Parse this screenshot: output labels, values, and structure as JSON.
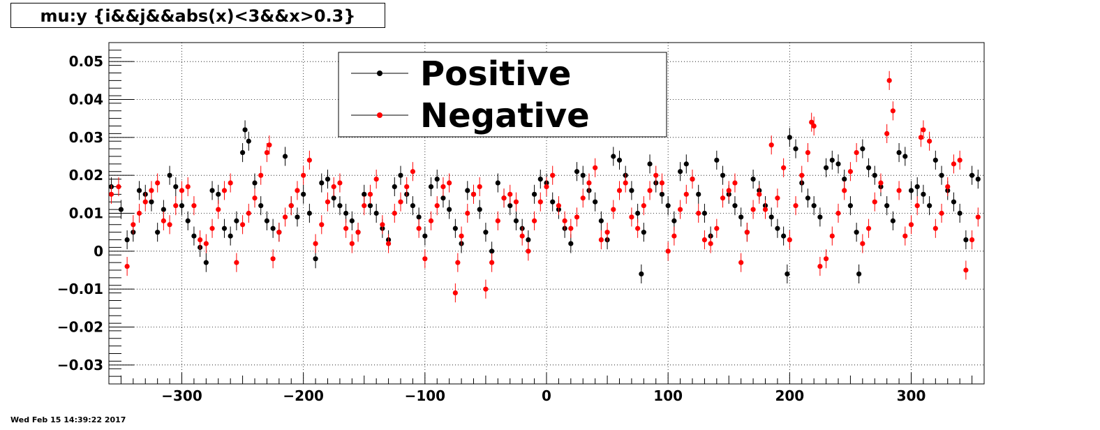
{
  "title": "mu:y {i&&j&&abs(x)<3&&x>0.3}",
  "footer": "Wed Feb 15 14:39:22 2017",
  "chart_data": {
    "type": "scatter",
    "xlim": [
      -360,
      360
    ],
    "ylim": [
      -0.035,
      0.055
    ],
    "xticks": [
      -300,
      -200,
      -100,
      0,
      100,
      200,
      300
    ],
    "xtick_labels": [
      "−300",
      "−200",
      "−100",
      "0",
      "100",
      "200",
      "300"
    ],
    "yticks": [
      -0.03,
      -0.02,
      -0.01,
      0,
      0.01,
      0.02,
      0.03,
      0.04,
      0.05
    ],
    "ytick_labels": [
      "−0.03",
      "−0.02",
      "−0.01",
      "0",
      "0.01",
      "0.02",
      "0.03",
      "0.04",
      "0.05"
    ],
    "grid": true,
    "legend_position": "top-center",
    "series": [
      {
        "name": "Positive",
        "color": "#000000",
        "x": [
          -358,
          -350,
          -345,
          -340,
          -335,
          -330,
          -325,
          -320,
          -315,
          -310,
          -305,
          -300,
          -295,
          -290,
          -285,
          -280,
          -275,
          -270,
          -265,
          -260,
          -255,
          -250,
          -248,
          -245,
          -240,
          -235,
          -230,
          -225,
          -220,
          -215,
          -210,
          -205,
          -200,
          -195,
          -190,
          -185,
          -180,
          -175,
          -170,
          -165,
          -160,
          -155,
          -150,
          -145,
          -140,
          -135,
          -130,
          -125,
          -120,
          -115,
          -110,
          -105,
          -100,
          -95,
          -90,
          -85,
          -80,
          -75,
          -70,
          -65,
          -60,
          -55,
          -50,
          -45,
          -40,
          -35,
          -30,
          -25,
          -20,
          -15,
          -10,
          -5,
          0,
          5,
          10,
          15,
          20,
          25,
          30,
          35,
          40,
          45,
          50,
          55,
          60,
          65,
          70,
          75,
          78,
          80,
          85,
          90,
          95,
          100,
          105,
          110,
          115,
          120,
          125,
          130,
          135,
          140,
          145,
          150,
          155,
          160,
          165,
          170,
          175,
          180,
          185,
          190,
          195,
          198,
          200,
          205,
          210,
          215,
          220,
          225,
          230,
          235,
          240,
          245,
          250,
          255,
          257,
          260,
          265,
          270,
          275,
          280,
          285,
          290,
          295,
          300,
          305,
          310,
          315,
          320,
          325,
          330,
          335,
          340,
          345,
          350,
          355
        ],
        "y": [
          0.017,
          0.011,
          0.003,
          0.005,
          0.016,
          0.015,
          0.013,
          0.005,
          0.011,
          0.02,
          0.017,
          0.012,
          0.008,
          0.004,
          0.001,
          -0.003,
          0.016,
          0.015,
          0.006,
          0.004,
          0.008,
          0.026,
          0.032,
          0.029,
          0.018,
          0.012,
          0.008,
          0.006,
          0.005,
          0.025,
          0.012,
          0.009,
          0.015,
          0.01,
          -0.002,
          0.018,
          0.019,
          0.014,
          0.012,
          0.01,
          0.008,
          0.005,
          0.015,
          0.012,
          0.01,
          0.006,
          0.003,
          0.017,
          0.02,
          0.015,
          0.012,
          0.009,
          0.004,
          0.017,
          0.019,
          0.014,
          0.011,
          0.006,
          0.002,
          0.016,
          0.015,
          0.011,
          0.005,
          0.0,
          0.018,
          0.014,
          0.012,
          0.008,
          0.006,
          0.003,
          0.015,
          0.019,
          0.018,
          0.013,
          0.011,
          0.006,
          0.002,
          0.021,
          0.02,
          0.016,
          0.013,
          0.008,
          0.003,
          0.025,
          0.024,
          0.02,
          0.016,
          0.01,
          -0.006,
          0.005,
          0.023,
          0.018,
          0.015,
          0.012,
          0.008,
          0.021,
          0.023,
          0.019,
          0.015,
          0.01,
          0.004,
          0.024,
          0.02,
          0.015,
          0.012,
          0.009,
          0.005,
          0.019,
          0.016,
          0.012,
          0.009,
          0.006,
          0.004,
          -0.006,
          0.03,
          0.027,
          0.018,
          0.014,
          0.012,
          0.009,
          0.022,
          0.024,
          0.023,
          0.019,
          0.012,
          0.005,
          -0.006,
          0.027,
          0.022,
          0.02,
          0.017,
          0.012,
          0.008,
          0.026,
          0.025,
          0.016,
          0.017,
          0.015,
          0.012,
          0.024,
          0.02,
          0.016,
          0.013,
          0.01,
          0.003,
          0.02,
          0.019
        ]
      },
      {
        "name": "Negative",
        "color": "#ff0000",
        "x": [
          -358,
          -352,
          -345,
          -340,
          -335,
          -330,
          -325,
          -320,
          -315,
          -310,
          -305,
          -300,
          -295,
          -290,
          -285,
          -280,
          -275,
          -270,
          -265,
          -260,
          -255,
          -250,
          -245,
          -240,
          -235,
          -230,
          -228,
          -225,
          -220,
          -215,
          -210,
          -205,
          -200,
          -195,
          -190,
          -185,
          -180,
          -175,
          -170,
          -165,
          -160,
          -155,
          -150,
          -145,
          -140,
          -135,
          -130,
          -125,
          -120,
          -115,
          -110,
          -105,
          -100,
          -95,
          -90,
          -85,
          -80,
          -75,
          -73,
          -70,
          -65,
          -60,
          -55,
          -50,
          -45,
          -40,
          -35,
          -30,
          -25,
          -20,
          -15,
          -10,
          -5,
          0,
          5,
          10,
          15,
          20,
          25,
          30,
          35,
          40,
          45,
          50,
          55,
          60,
          65,
          70,
          75,
          80,
          85,
          90,
          95,
          100,
          105,
          110,
          115,
          120,
          125,
          130,
          135,
          140,
          145,
          150,
          155,
          160,
          165,
          170,
          175,
          180,
          185,
          190,
          195,
          200,
          205,
          210,
          215,
          218,
          220,
          225,
          230,
          235,
          240,
          245,
          250,
          255,
          260,
          265,
          270,
          275,
          280,
          282,
          285,
          290,
          295,
          300,
          305,
          308,
          310,
          315,
          320,
          325,
          330,
          335,
          340,
          345,
          350,
          355
        ],
        "y": [
          0.015,
          0.017,
          -0.004,
          0.007,
          0.01,
          0.013,
          0.016,
          0.018,
          0.008,
          0.007,
          0.012,
          0.016,
          0.017,
          0.012,
          0.003,
          0.002,
          0.006,
          0.011,
          0.016,
          0.018,
          -0.003,
          0.007,
          0.01,
          0.014,
          0.02,
          0.026,
          0.028,
          -0.002,
          0.005,
          0.009,
          0.012,
          0.016,
          0.02,
          0.024,
          0.002,
          0.007,
          0.013,
          0.017,
          0.018,
          0.006,
          0.002,
          0.005,
          0.012,
          0.015,
          0.019,
          0.007,
          0.002,
          0.01,
          0.013,
          0.017,
          0.021,
          0.006,
          -0.002,
          0.008,
          0.012,
          0.017,
          0.018,
          -0.011,
          -0.003,
          0.004,
          0.01,
          0.015,
          0.017,
          -0.01,
          -0.003,
          0.008,
          0.014,
          0.015,
          0.013,
          0.004,
          0.0,
          0.008,
          0.013,
          0.017,
          0.02,
          0.012,
          0.008,
          0.006,
          0.009,
          0.014,
          0.018,
          0.022,
          0.003,
          0.005,
          0.011,
          0.016,
          0.018,
          0.009,
          0.006,
          0.012,
          0.016,
          0.02,
          0.018,
          0.0,
          0.004,
          0.011,
          0.015,
          0.019,
          0.01,
          0.003,
          0.002,
          0.006,
          0.014,
          0.016,
          0.018,
          -0.003,
          0.005,
          0.011,
          0.015,
          0.011,
          0.028,
          0.014,
          0.022,
          0.003,
          0.012,
          0.02,
          0.026,
          0.034,
          0.033,
          -0.004,
          -0.002,
          0.004,
          0.01,
          0.016,
          0.021,
          0.026,
          0.002,
          0.006,
          0.013,
          0.018,
          0.031,
          0.045,
          0.037,
          0.016,
          0.004,
          0.007,
          0.012,
          0.03,
          0.032,
          0.029,
          0.006,
          0.01,
          0.017,
          0.023,
          0.024,
          -0.005,
          0.003,
          0.009
        ]
      }
    ]
  }
}
